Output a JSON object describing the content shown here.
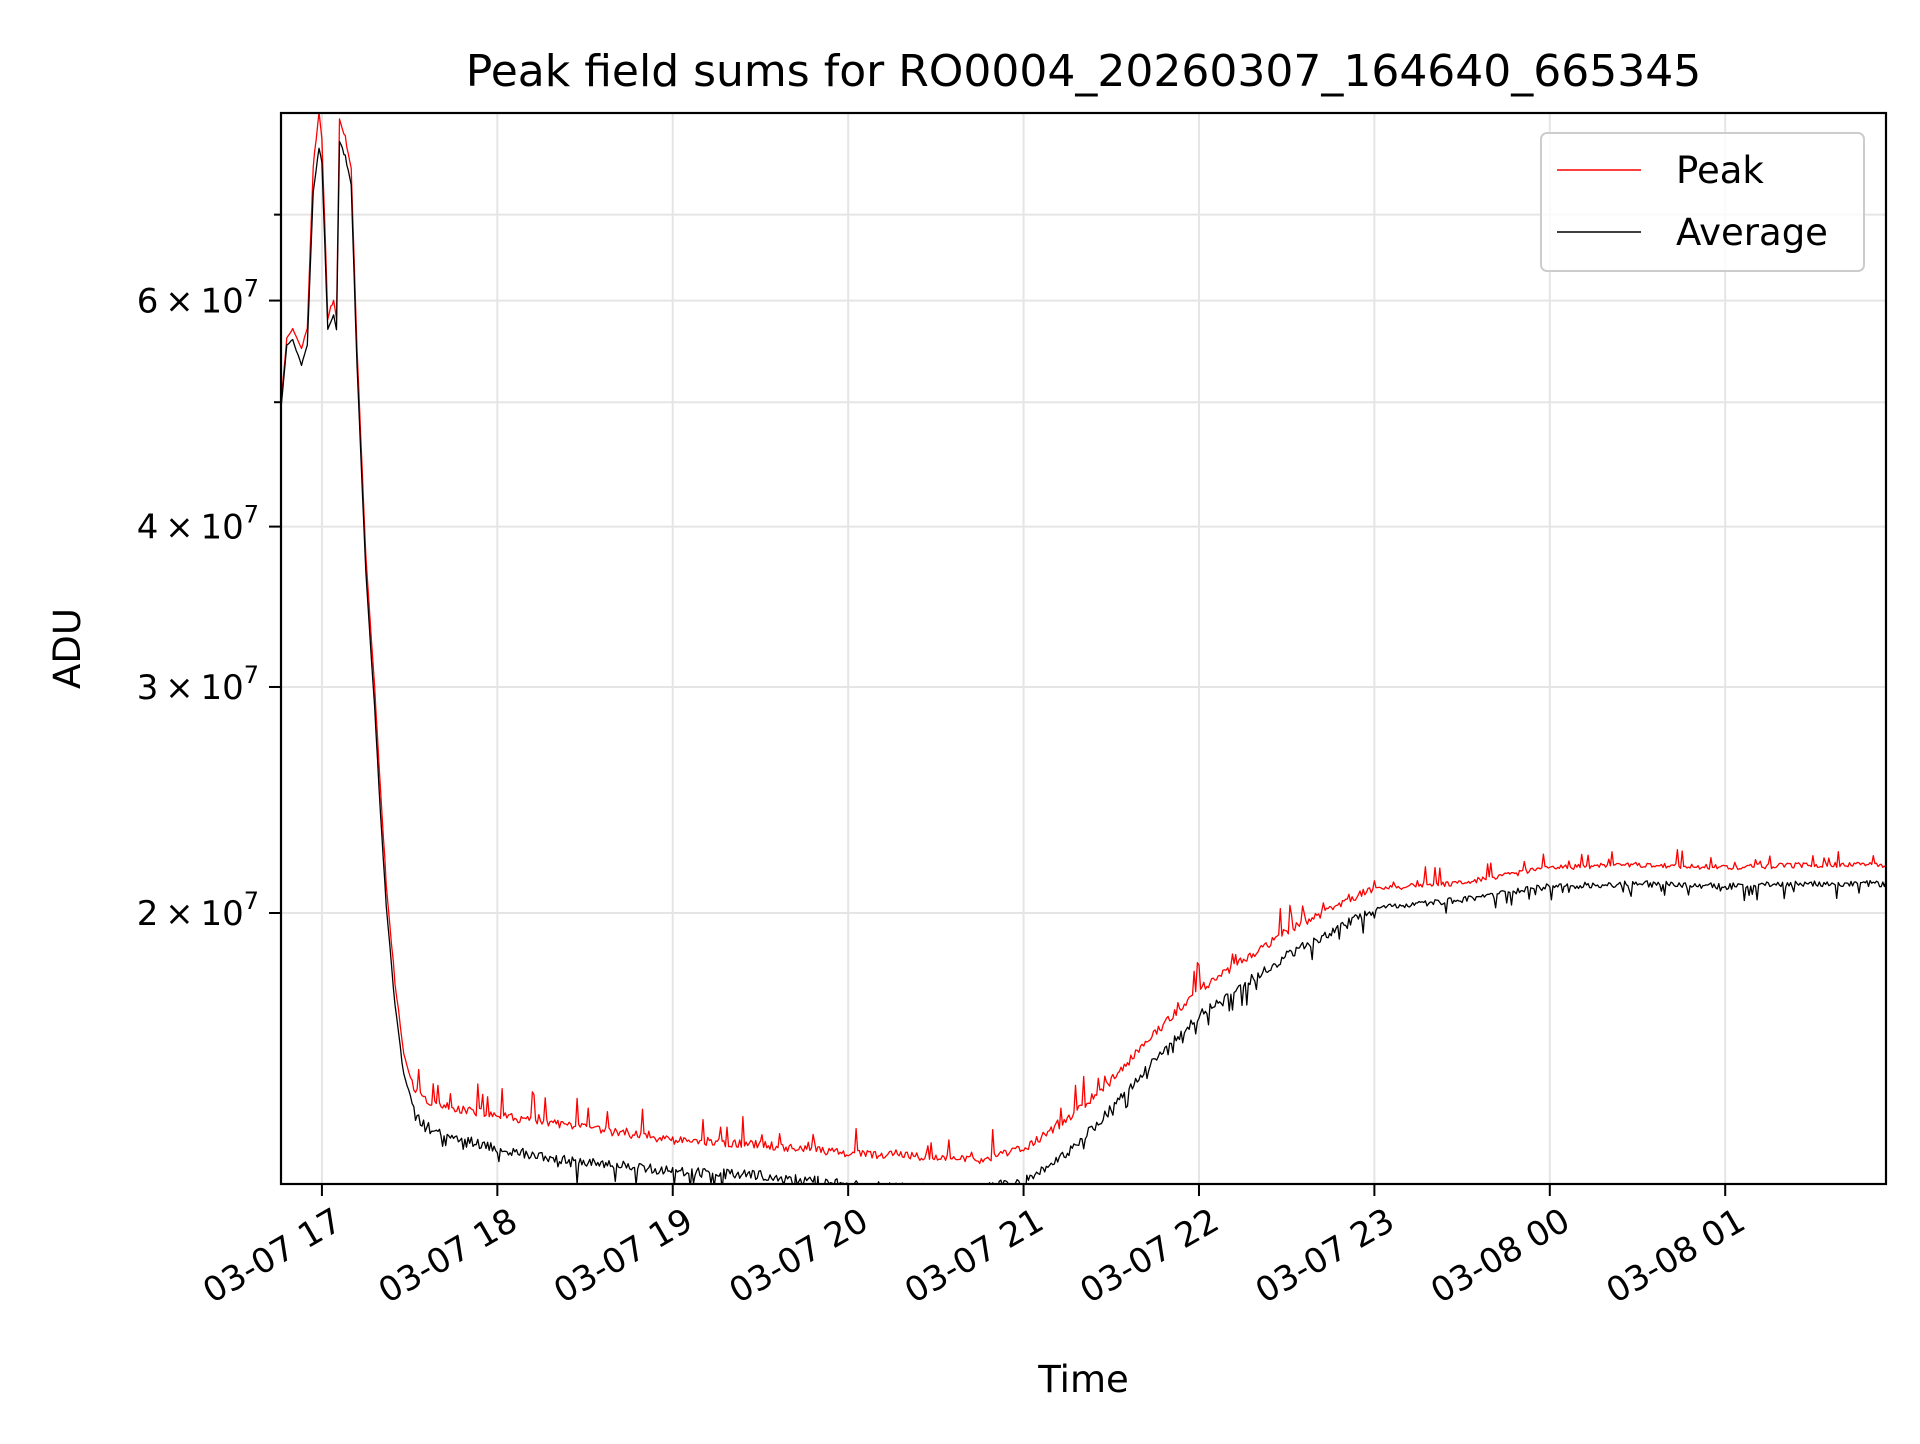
{
  "chart_data": {
    "type": "line",
    "title": "Peak field sums for RO0004_20260307_164640_665345",
    "xlabel": "Time",
    "ylabel": "ADU",
    "yscale": "log",
    "xlim": [
      "2026-03-07 16:46",
      "2026-03-08 01:55"
    ],
    "ylim": [
      12300000,
      84000000
    ],
    "grid": true,
    "legend": "top-right",
    "x_ticks": [
      {
        "label": "03-07 17",
        "value": "2026-03-07 17:00"
      },
      {
        "label": "03-07 18",
        "value": "2026-03-07 18:00"
      },
      {
        "label": "03-07 19",
        "value": "2026-03-07 19:00"
      },
      {
        "label": "03-07 20",
        "value": "2026-03-07 20:00"
      },
      {
        "label": "03-07 21",
        "value": "2026-03-07 21:00"
      },
      {
        "label": "03-07 22",
        "value": "2026-03-07 22:00"
      },
      {
        "label": "03-07 23",
        "value": "2026-03-07 23:00"
      },
      {
        "label": "03-08 00",
        "value": "2026-03-08 00:00"
      },
      {
        "label": "03-08 01",
        "value": "2026-03-08 01:00"
      }
    ],
    "y_ticks": [
      {
        "base": "2",
        "exp": "7",
        "value": 20000000
      },
      {
        "base": "3",
        "exp": "7",
        "value": 30000000
      },
      {
        "base": "4",
        "exp": "7",
        "value": 40000000
      },
      {
        "base": "6",
        "exp": "7",
        "value": 60000000
      }
    ],
    "y_minor_ticks": [
      50000000,
      70000000
    ],
    "series": [
      {
        "name": "Peak",
        "color": "#ff0000",
        "x": [
          "2026-03-07 16:46",
          "2026-03-07 16:48",
          "2026-03-07 16:50",
          "2026-03-07 16:53",
          "2026-03-07 16:55",
          "2026-03-07 16:57",
          "2026-03-07 16:59",
          "2026-03-07 17:00",
          "2026-03-07 17:02",
          "2026-03-07 17:04",
          "2026-03-07 17:05",
          "2026-03-07 17:06",
          "2026-03-07 17:08",
          "2026-03-07 17:10",
          "2026-03-07 17:12",
          "2026-03-07 17:15",
          "2026-03-07 17:18",
          "2026-03-07 17:20",
          "2026-03-07 17:22",
          "2026-03-07 17:25",
          "2026-03-07 17:28",
          "2026-03-07 17:32",
          "2026-03-07 17:37",
          "2026-03-07 17:45",
          "2026-03-07 18:00",
          "2026-03-07 18:30",
          "2026-03-07 19:00",
          "2026-03-07 19:30",
          "2026-03-07 20:00",
          "2026-03-07 20:30",
          "2026-03-07 20:45",
          "2026-03-07 21:00",
          "2026-03-07 21:15",
          "2026-03-07 21:30",
          "2026-03-07 21:45",
          "2026-03-07 22:00",
          "2026-03-07 22:30",
          "2026-03-07 23:00",
          "2026-03-07 23:30",
          "2026-03-08 00:00",
          "2026-03-08 00:30",
          "2026-03-08 01:00",
          "2026-03-08 01:30",
          "2026-03-08 01:55"
        ],
        "y": [
          50000000,
          56000000,
          57000000,
          55000000,
          57000000,
          76000000,
          84000000,
          80000000,
          58000000,
          60000000,
          58000000,
          83000000,
          80000000,
          76000000,
          55000000,
          38000000,
          30000000,
          25000000,
          21000000,
          17600000,
          15500000,
          14400000,
          14100000,
          14000000,
          13800000,
          13500000,
          13200000,
          13100000,
          12900000,
          12800000,
          12750000,
          13000000,
          13700000,
          14700000,
          16000000,
          17300000,
          19200000,
          20800000,
          21000000,
          21600000,
          21700000,
          21600000,
          21700000,
          21700000
        ]
      },
      {
        "name": "Average",
        "color": "#000000",
        "x": [
          "2026-03-07 16:46",
          "2026-03-07 16:48",
          "2026-03-07 16:50",
          "2026-03-07 16:53",
          "2026-03-07 16:55",
          "2026-03-07 16:57",
          "2026-03-07 16:59",
          "2026-03-07 17:00",
          "2026-03-07 17:02",
          "2026-03-07 17:04",
          "2026-03-07 17:05",
          "2026-03-07 17:06",
          "2026-03-07 17:08",
          "2026-03-07 17:10",
          "2026-03-07 17:12",
          "2026-03-07 17:15",
          "2026-03-07 17:18",
          "2026-03-07 17:20",
          "2026-03-07 17:22",
          "2026-03-07 17:25",
          "2026-03-07 17:28",
          "2026-03-07 17:32",
          "2026-03-07 17:37",
          "2026-03-07 17:45",
          "2026-03-07 18:00",
          "2026-03-07 18:30",
          "2026-03-07 19:00",
          "2026-03-07 19:30",
          "2026-03-07 20:00",
          "2026-03-07 20:30",
          "2026-03-07 20:45",
          "2026-03-07 21:00",
          "2026-03-07 21:15",
          "2026-03-07 21:30",
          "2026-03-07 21:45",
          "2026-03-07 22:00",
          "2026-03-07 22:30",
          "2026-03-07 23:00",
          "2026-03-07 23:30",
          "2026-03-08 00:00",
          "2026-03-08 00:30",
          "2026-03-08 01:00",
          "2026-03-08 01:30",
          "2026-03-08 01:55"
        ],
        "y": [
          49500000,
          55500000,
          56000000,
          53500000,
          55500000,
          73000000,
          79000000,
          77000000,
          57000000,
          58500000,
          57000000,
          80000000,
          78000000,
          74000000,
          53500000,
          37000000,
          29000000,
          24000000,
          20300000,
          17000000,
          15000000,
          14000000,
          13700000,
          13500000,
          13200000,
          12900000,
          12700000,
          12600000,
          12400000,
          12300000,
          12300000,
          12500000,
          13100000,
          14200000,
          15500000,
          16800000,
          18700000,
          20300000,
          20600000,
          21100000,
          21200000,
          21100000,
          21200000,
          21200000
        ]
      }
    ]
  }
}
